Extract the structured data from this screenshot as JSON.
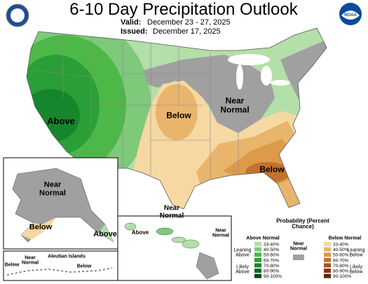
{
  "header": {
    "title": "6-10 Day Precipitation Outlook",
    "valid_label": "Valid:",
    "valid_dates": "December 23 - 27, 2025",
    "issued_label": "Issued:",
    "issued_dates": "December 17, 2025",
    "logo_text": "NOAA"
  },
  "map_labels": [
    "Above",
    "Below",
    "Near Normal",
    "Below",
    "Near Normal",
    "Near Normal",
    "Below",
    "Above",
    "Below",
    "Near Normal",
    "Aleutian Islands",
    "Below",
    "Above",
    "Near Normal"
  ],
  "legend": {
    "title": "Probability (Percent Chance)",
    "above_title": "Above Normal",
    "near_title": "Near Normal",
    "below_title": "Below Normal",
    "above_ranges": [
      "33-40%",
      "40-50%",
      "50-60%",
      "60-70%",
      "70-80%",
      "80-90%",
      "90-100%"
    ],
    "below_ranges": [
      "33-40%",
      "40-50%",
      "50-60%",
      "60-70%",
      "70-80%",
      "80-90%",
      "90-100%"
    ],
    "leaning_above": "Leaning Above",
    "likely_above": "Likely Above",
    "leaning_below": "Leaning Below",
    "likely_below": "Likely Below"
  }
}
